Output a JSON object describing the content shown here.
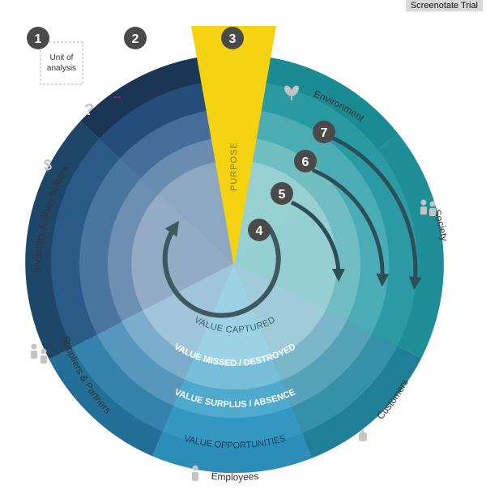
{
  "watermark": "Screenotate Trial",
  "steps": [
    "1",
    "2",
    "3",
    "4",
    "5",
    "6",
    "7"
  ],
  "unit_box": {
    "line1": "Unit of",
    "line2": "analysis"
  },
  "purpose_label": "PURPOSE",
  "ring_labels": {
    "captured": "VALUE CAPTURED",
    "missed": "VALUE MISSED / DESTROYED",
    "surplus": "VALUE SURPLUS / ABSENCE",
    "opportunities": "VALUE OPPORTUNITIES"
  },
  "stakeholders": {
    "environment": "Environment",
    "society": "Society",
    "customers": "Customers",
    "employees": "Employees",
    "suppliers": "Suppliers & Partners",
    "investors": "Investors & Shareholders"
  },
  "ellipsis": "...",
  "icons": [
    "question-icon",
    "dollar-icon",
    "leaf-icon",
    "people-icon",
    "handshake-icon",
    "person-icon",
    "hand-icon"
  ],
  "colors": {
    "purpose": "#f5d313",
    "marker": "#4a4a4a",
    "arrow": "#3f5860",
    "dark_navy": "#1b3b5e",
    "teal": "#1f8f98",
    "cyan": "#2e96b3"
  }
}
